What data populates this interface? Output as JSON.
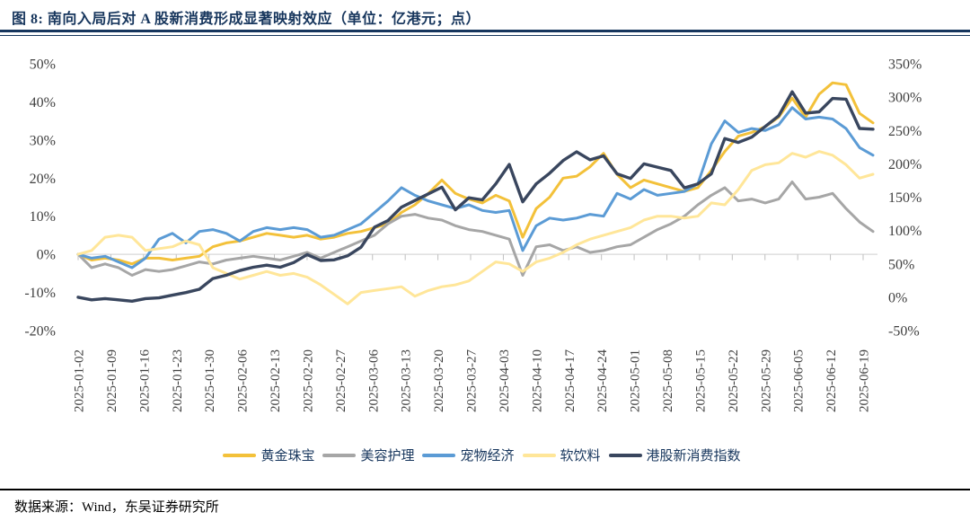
{
  "title": "图 8:  南向入局后对 A 股新消费形成显著映射效应（单位：亿港元；点）",
  "source_note": "数据来源：Wind，东吴证券研究所",
  "chart_data": {
    "type": "line",
    "title": "南向入局后对A股新消费形成显著映射效应",
    "grid": "zero-line-only",
    "legend_position": "bottom",
    "x_tick_labels": [
      "2025-01-02",
      "2025-01-09",
      "2025-01-16",
      "2025-01-23",
      "2025-01-30",
      "2025-02-06",
      "2025-02-13",
      "2025-02-20",
      "2025-02-27",
      "2025-03-06",
      "2025-03-13",
      "2025-03-20",
      "2025-03-27",
      "2025-04-03",
      "2025-04-10",
      "2025-04-17",
      "2025-04-24",
      "2025-05-01",
      "2025-05-08",
      "2025-05-15",
      "2025-05-22",
      "2025-05-29",
      "2025-06-05",
      "2025-06-12",
      "2025-06-19"
    ],
    "left_axis": {
      "unit": "%",
      "min": -20,
      "max": 50,
      "ticks": [
        50,
        40,
        30,
        20,
        10,
        0,
        -10,
        -20
      ],
      "tick_labels": [
        "50%",
        "40%",
        "30%",
        "20%",
        "10%",
        "0%",
        "-10%",
        "-20%"
      ]
    },
    "right_axis": {
      "unit": "%",
      "min": -50,
      "max": 350,
      "ticks": [
        350,
        300,
        250,
        200,
        150,
        100,
        50,
        0,
        -50
      ],
      "tick_labels": [
        "350%",
        "300%",
        "250%",
        "200%",
        "150%",
        "100%",
        "50%",
        "0%",
        "-50%"
      ]
    },
    "x_dates": [
      "01-02",
      "01-06",
      "01-08",
      "01-10",
      "01-13",
      "01-15",
      "01-17",
      "01-21",
      "01-23",
      "01-27",
      "02-05",
      "02-07",
      "02-10",
      "02-12",
      "02-14",
      "02-17",
      "02-19",
      "02-21",
      "02-25",
      "02-27",
      "03-03",
      "03-05",
      "03-07",
      "03-11",
      "03-13",
      "03-17",
      "03-19",
      "03-21",
      "03-25",
      "03-27",
      "03-31",
      "04-02",
      "04-04",
      "04-08",
      "04-10",
      "04-14",
      "04-16",
      "04-18",
      "04-22",
      "04-24",
      "04-28",
      "04-30",
      "05-06",
      "05-08",
      "05-12",
      "05-14",
      "05-16",
      "05-20",
      "05-22",
      "05-26",
      "05-28",
      "05-30",
      "06-03",
      "06-05",
      "06-09",
      "06-11",
      "06-13",
      "06-17",
      "06-19",
      "06-20"
    ],
    "series": [
      {
        "name": "黄金珠宝",
        "axis": "left",
        "color": "#F3C13A",
        "values": [
          0,
          -1.5,
          -1,
          -1.5,
          -2.5,
          -1,
          -1,
          -1.5,
          -1,
          -0.5,
          2,
          3,
          3.5,
          4.5,
          5.5,
          5,
          4.5,
          5,
          4,
          4.5,
          5.5,
          6,
          7,
          8,
          11,
          13,
          16,
          19.5,
          16,
          14.5,
          13.5,
          15.5,
          14,
          4.5,
          12,
          15,
          20,
          20.5,
          23,
          26.5,
          21,
          17.5,
          19.5,
          18.5,
          17.5,
          16.5,
          17.5,
          22,
          27,
          31,
          32,
          33.5,
          36,
          41,
          36,
          42,
          45,
          44.5,
          37,
          34.5
        ]
      },
      {
        "name": "美容护理",
        "axis": "left",
        "color": "#A6A6A6",
        "values": [
          0,
          -3.5,
          -2.5,
          -3.5,
          -5.5,
          -4,
          -4.5,
          -4,
          -3,
          -2,
          -2.5,
          -1.5,
          -1,
          -0.5,
          -1,
          -1.5,
          -0.5,
          0.5,
          -1,
          0.5,
          2,
          3.5,
          5,
          8,
          10,
          10.5,
          9.5,
          9,
          7.5,
          6.5,
          6,
          5,
          4,
          -5.5,
          2,
          2.5,
          1,
          2,
          0.5,
          1,
          2,
          2.5,
          4.5,
          6.5,
          8,
          10,
          13,
          15.5,
          17.5,
          14,
          14.5,
          13.5,
          14.5,
          19,
          14.5,
          15,
          16,
          12,
          8.5,
          6
        ]
      },
      {
        "name": "宠物经济",
        "axis": "left",
        "color": "#5B9BD5",
        "values": [
          0,
          -1,
          -0.5,
          -2,
          -3.5,
          -1,
          4,
          5.5,
          3,
          6,
          6.5,
          5.5,
          3.5,
          6,
          7,
          6.5,
          7,
          6.5,
          4.5,
          5,
          6.5,
          8,
          11,
          14,
          17.5,
          15.5,
          14,
          13,
          12,
          13,
          11.5,
          11,
          11.5,
          1,
          7.5,
          9.5,
          9,
          9.5,
          10.5,
          10,
          16,
          14.5,
          17,
          15.5,
          16,
          16.5,
          18.5,
          29,
          35,
          32,
          33,
          32.5,
          34,
          38.5,
          35.5,
          36,
          35.5,
          33,
          28,
          26
        ]
      },
      {
        "name": "软饮料",
        "axis": "left",
        "color": "#FFE699",
        "values": [
          0,
          1,
          4.5,
          5,
          4.5,
          1,
          1.5,
          2,
          3.5,
          2.5,
          -3.5,
          -5,
          -6.5,
          -5.5,
          -4.5,
          -5.5,
          -5,
          -6,
          -8,
          -10.5,
          -13,
          -10,
          -9.5,
          -9,
          -8.5,
          -11,
          -9.5,
          -8.5,
          -8,
          -7,
          -4.5,
          -2,
          -2.5,
          -4.5,
          -2,
          -1,
          0.5,
          2.5,
          4,
          5,
          6,
          7,
          9,
          10,
          10,
          9.5,
          10,
          13.5,
          13,
          17,
          22,
          23.5,
          24,
          26.5,
          25.5,
          27,
          26,
          23.5,
          20,
          21
        ]
      },
      {
        "name": "港股新消费指数",
        "axis": "right",
        "color": "#39465E",
        "values": [
          0,
          -4,
          -2,
          -4,
          -6,
          -2,
          -1,
          3,
          7,
          12,
          28,
          33,
          40,
          45,
          48,
          45,
          52,
          64,
          55,
          56,
          62,
          75,
          105,
          115,
          135,
          145,
          155,
          165,
          131,
          149,
          146,
          170,
          199,
          143,
          170,
          186,
          205,
          218,
          206,
          212,
          185,
          178,
          200,
          195,
          190,
          164,
          170,
          185,
          238,
          232,
          240,
          256,
          272,
          308,
          276,
          278,
          298,
          297,
          253,
          252
        ]
      }
    ]
  }
}
